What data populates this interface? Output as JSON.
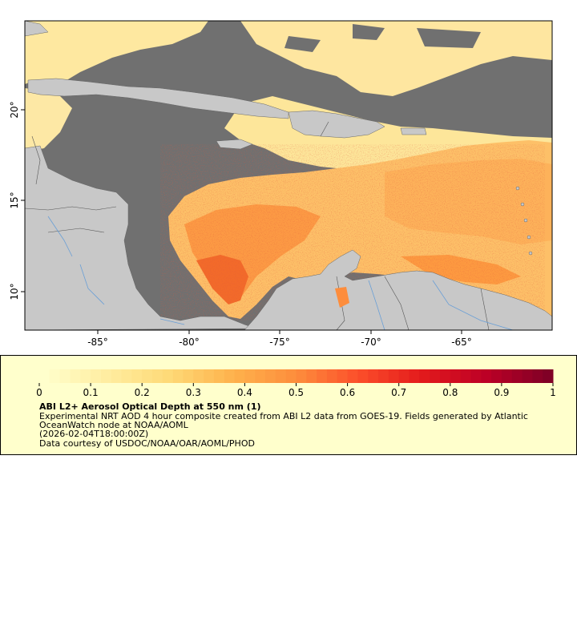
{
  "map": {
    "lat_ticks": [
      "10°",
      "15°",
      "20°"
    ],
    "lon_ticks": [
      "-85°",
      "-80°",
      "-75°",
      "-70°",
      "-65°"
    ],
    "colors": {
      "land": "#c8c8c8",
      "no_data": "#707070",
      "rivers": "#6a9fd6",
      "borders": "#555555"
    }
  },
  "colorbar": {
    "min": 0,
    "max": 1,
    "tick_labels": [
      "0",
      "0.1",
      "0.2",
      "0.3",
      "0.4",
      "0.5",
      "0.6",
      "0.7",
      "0.8",
      "0.9",
      "1"
    ],
    "colors": [
      "#ffffcc",
      "#ffeda0",
      "#fed976",
      "#feb24c",
      "#fd8d3c",
      "#fc4e2a",
      "#e31a1c",
      "#bd0026",
      "#800026"
    ]
  },
  "legend": {
    "title": "ABI L2+ Aerosol Optical Depth at 550 nm (1)",
    "line1": "Experimental NRT AOD 4 hour composite created from ABI L2 data from GOES-19. Fields generated by Atlantic",
    "line2": "OceanWatch node at NOAA/AOML",
    "line3": "(2026-02-04T18:00:00Z)",
    "line4": "Data courtesy of USDOC/NOAA/OAR/AOML/PHOD"
  }
}
